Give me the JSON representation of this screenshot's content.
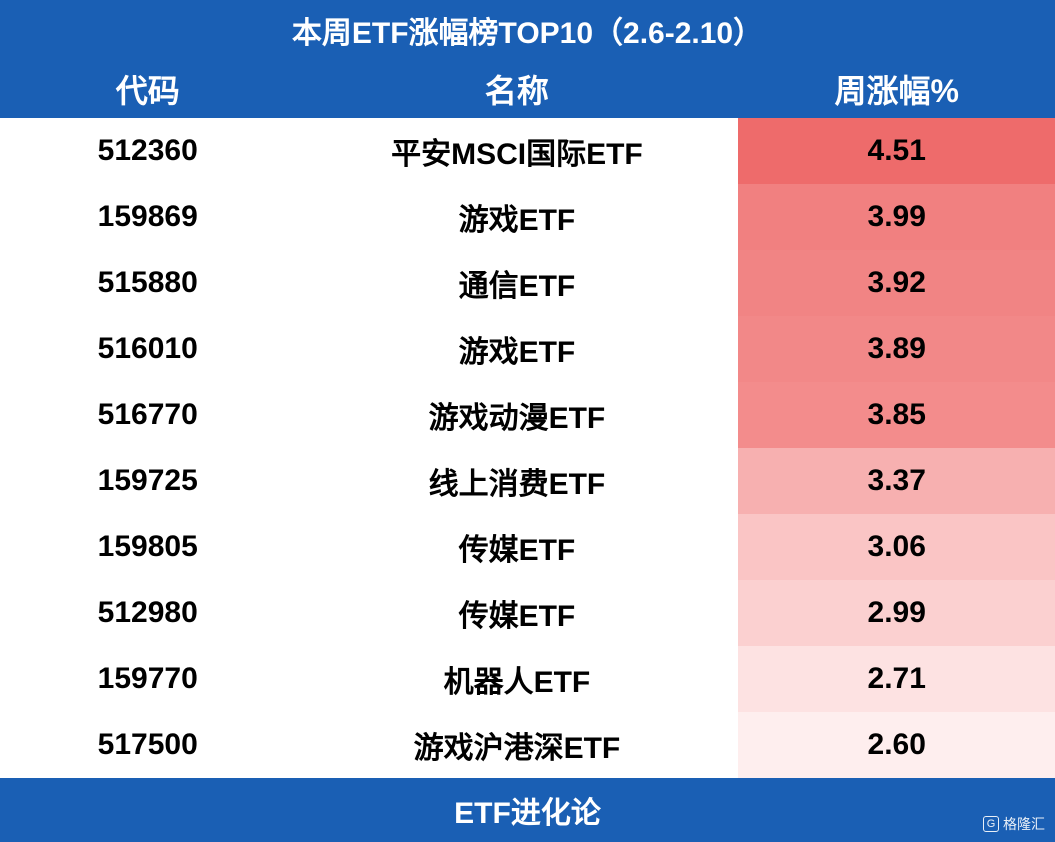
{
  "title": "本周ETF涨幅榜TOP10（2.6-2.10）",
  "columns": {
    "code": "代码",
    "name": "名称",
    "change": "周涨幅%"
  },
  "rows": [
    {
      "code": "512360",
      "name": "平安MSCI国际ETF",
      "change": "4.51",
      "bg": "#ee6b6b"
    },
    {
      "code": "159869",
      "name": "游戏ETF",
      "change": "3.99",
      "bg": "#f18080"
    },
    {
      "code": "515880",
      "name": "通信ETF",
      "change": "3.92",
      "bg": "#f18484"
    },
    {
      "code": "516010",
      "name": "游戏ETF",
      "change": "3.89",
      "bg": "#f28888"
    },
    {
      "code": "516770",
      "name": "游戏动漫ETF",
      "change": "3.85",
      "bg": "#f38c8c"
    },
    {
      "code": "159725",
      "name": "线上消费ETF",
      "change": "3.37",
      "bg": "#f7b0b0"
    },
    {
      "code": "159805",
      "name": "传媒ETF",
      "change": "3.06",
      "bg": "#fac5c5"
    },
    {
      "code": "512980",
      "name": "传媒ETF",
      "change": "2.99",
      "bg": "#fbd0d0"
    },
    {
      "code": "159770",
      "name": "机器人ETF",
      "change": "2.71",
      "bg": "#fde2e2"
    },
    {
      "code": "517500",
      "name": "游戏沪港深ETF",
      "change": "2.60",
      "bg": "#feeeee"
    }
  ],
  "footer": "ETF进化论",
  "watermark": "格隆汇",
  "colors": {
    "header_bg": "#1a5fb4",
    "header_text": "#ffffff",
    "body_text": "#000000",
    "code_name_bg": "#ffffff"
  }
}
